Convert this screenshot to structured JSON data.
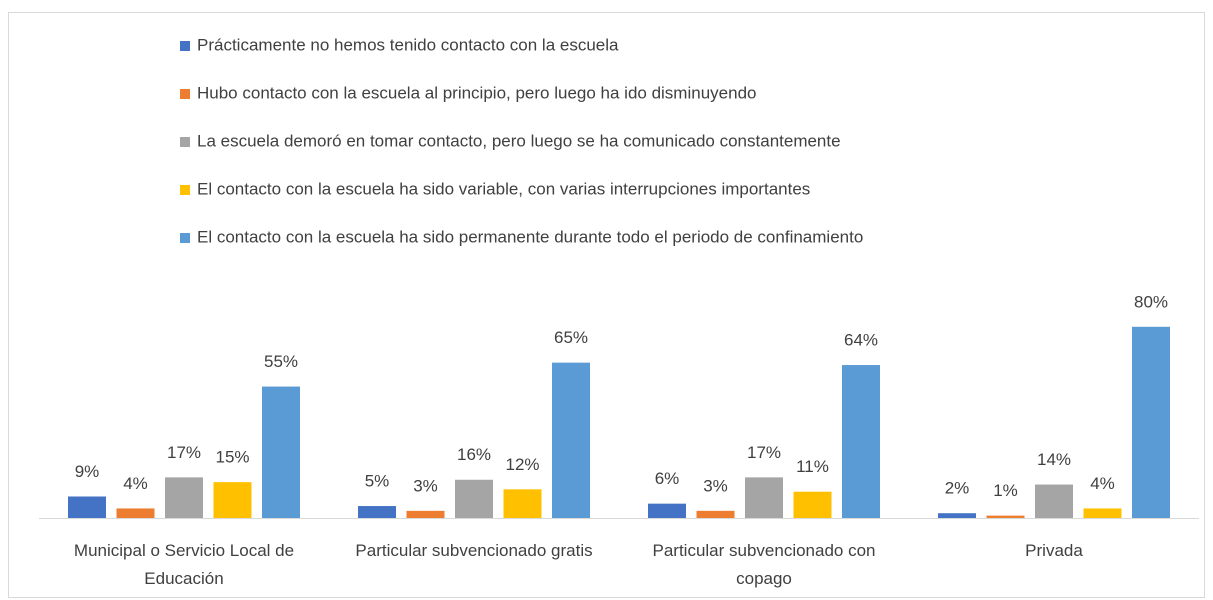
{
  "chart_data": {
    "type": "bar",
    "categories": [
      "Municipal o Servicio Local de Educación",
      "Particular subvencionado gratis",
      "Particular subvencionado con copago",
      "Privada"
    ],
    "series": [
      {
        "name": "Prácticamente no hemos tenido contacto con la escuela",
        "color": "#4472c4",
        "values": [
          9,
          5,
          6,
          2
        ],
        "value_labels": [
          "9%",
          "5%",
          "6%",
          "2%"
        ]
      },
      {
        "name": "Hubo contacto con la escuela al principio, pero luego ha ido disminuyendo",
        "color": "#ed7d31",
        "values": [
          4,
          3,
          3,
          1
        ],
        "value_labels": [
          "4%",
          "3%",
          "3%",
          "1%"
        ]
      },
      {
        "name": "La escuela demoró en tomar contacto, pero luego se ha comunicado constantemente",
        "color": "#a5a5a5",
        "values": [
          17,
          16,
          17,
          14
        ],
        "value_labels": [
          "17%",
          "16%",
          "17%",
          "14%"
        ]
      },
      {
        "name": "El contacto con la escuela ha sido variable, con varias interrupciones importantes",
        "color": "#ffc000",
        "values": [
          15,
          12,
          11,
          4
        ],
        "value_labels": [
          "15%",
          "12%",
          "11%",
          "4%"
        ]
      },
      {
        "name": "El contacto con la escuela ha sido permanente durante todo el periodo de confinamiento",
        "color": "#5b9bd5",
        "values": [
          55,
          65,
          64,
          80
        ],
        "value_labels": [
          "55%",
          "65%",
          "64%",
          "80%"
        ]
      }
    ],
    "ylim": [
      0,
      100
    ]
  }
}
